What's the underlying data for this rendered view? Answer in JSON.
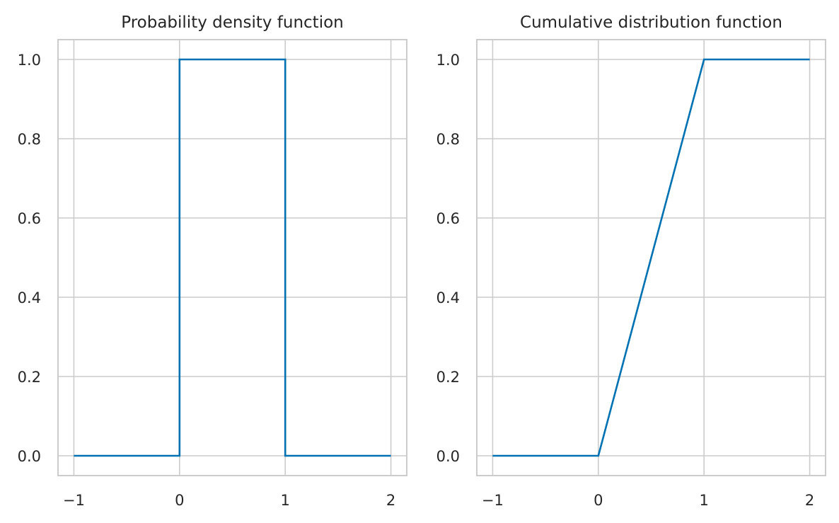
{
  "colors": {
    "series": "#0072b2",
    "grid": "#cccccc",
    "text": "#262626"
  },
  "chart_data": [
    {
      "type": "line",
      "title": "Probability density function",
      "xlabel": "",
      "ylabel": "",
      "xlim": [
        -1.15,
        2.15
      ],
      "ylim": [
        -0.05,
        1.05
      ],
      "xticks": [
        -1,
        0,
        1,
        2
      ],
      "xtick_labels": [
        "−1",
        "0",
        "1",
        "2"
      ],
      "yticks": [
        0.0,
        0.2,
        0.4,
        0.6,
        0.8,
        1.0
      ],
      "ytick_labels": [
        "0.0",
        "0.2",
        "0.4",
        "0.6",
        "0.8",
        "1.0"
      ],
      "grid": true,
      "series": [
        {
          "x": [
            -1,
            0,
            0,
            1,
            1,
            2
          ],
          "y": [
            0,
            0,
            1,
            1,
            0,
            0
          ]
        }
      ]
    },
    {
      "type": "line",
      "title": "Cumulative distribution function",
      "xlabel": "",
      "ylabel": "",
      "xlim": [
        -1.15,
        2.15
      ],
      "ylim": [
        -0.05,
        1.05
      ],
      "xticks": [
        -1,
        0,
        1,
        2
      ],
      "xtick_labels": [
        "−1",
        "0",
        "1",
        "2"
      ],
      "yticks": [
        0.0,
        0.2,
        0.4,
        0.6,
        0.8,
        1.0
      ],
      "ytick_labels": [
        "0.0",
        "0.2",
        "0.4",
        "0.6",
        "0.8",
        "1.0"
      ],
      "grid": true,
      "series": [
        {
          "x": [
            -1,
            0,
            1,
            2
          ],
          "y": [
            0,
            0,
            1,
            1
          ]
        }
      ]
    }
  ]
}
